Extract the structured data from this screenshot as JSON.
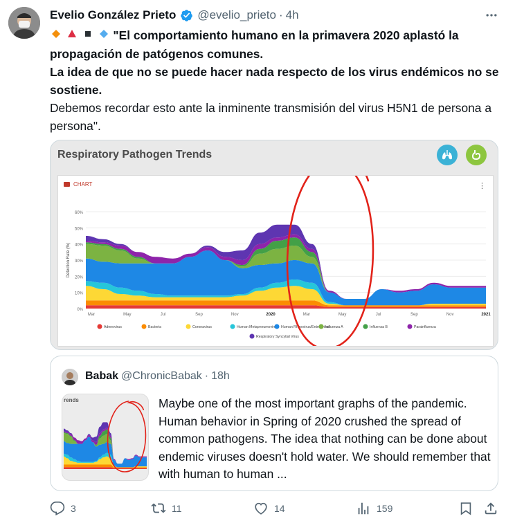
{
  "tweet": {
    "author_name": "Evelio González Prieto",
    "handle": "@evelio_prieto",
    "separator": "·",
    "time": "4h",
    "emoji_prefix": [
      "orange-diamond",
      "red-triangle",
      "black-square",
      "blue-diamond"
    ],
    "text_bold_1": "\"El comportamiento humano en la primavera 2020 aplastó la propagación de patógenos comunes.",
    "text_bold_2": "La idea de que no se puede hacer nada respecto de los virus endémicos no se sostiene.",
    "text_normal": "Debemos recordar esto ante la inminente transmisión del virus H5N1 de persona a persona\"."
  },
  "media": {
    "title": "Respiratory Pathogen Trends",
    "chart_label": "CHART",
    "badge_colors": [
      "#3bb2d6",
      "#8dc63f"
    ]
  },
  "chart_data": {
    "type": "area",
    "stacked": true,
    "ylabel": "Detection Rate (%)",
    "ylim": [
      0,
      60
    ],
    "y_ticks": [
      "0%",
      "10%",
      "20%",
      "30%",
      "40%",
      "50%",
      "60%"
    ],
    "x_ticks": [
      "Mar",
      "May",
      "Jul",
      "Sep",
      "Nov",
      "2020",
      "Mar",
      "May",
      "Jul",
      "Sep",
      "Nov",
      "2021"
    ],
    "x": [
      "Feb-19",
      "Mar-19",
      "Apr-19",
      "May-19",
      "Jun-19",
      "Jul-19",
      "Aug-19",
      "Sep-19",
      "Oct-19",
      "Nov-19",
      "Dec-19",
      "Jan-20",
      "Feb-20",
      "Mar-20",
      "Apr-20",
      "May-20",
      "Jun-20",
      "Jul-20",
      "Aug-20",
      "Sep-20",
      "Oct-20",
      "Nov-20",
      "Dec-20",
      "Jan-21"
    ],
    "series": [
      {
        "name": "Adenovirus",
        "color": "#e53935",
        "values": [
          2,
          2,
          2,
          2,
          2,
          2,
          2,
          2,
          2,
          2,
          2,
          2,
          2,
          2,
          1,
          1,
          1,
          1,
          1,
          1,
          1,
          1,
          1,
          1
        ]
      },
      {
        "name": "Bacteria",
        "color": "#fb8c00",
        "values": [
          3,
          3,
          3,
          3,
          3,
          3,
          3,
          3,
          3,
          3,
          3,
          3,
          3,
          3,
          1,
          1,
          1,
          1,
          1,
          1,
          1,
          1,
          1,
          1
        ]
      },
      {
        "name": "Coronavirus",
        "color": "#fdd835",
        "values": [
          9,
          7,
          4,
          3,
          2,
          2,
          2,
          2,
          2,
          3,
          6,
          8,
          9,
          7,
          1,
          0,
          0,
          0,
          0,
          0,
          1,
          1,
          1,
          1
        ]
      },
      {
        "name": "Human Metapneumovirus",
        "color": "#26c6da",
        "values": [
          3,
          4,
          4,
          3,
          2,
          1,
          1,
          1,
          1,
          1,
          2,
          3,
          4,
          4,
          1,
          0,
          0,
          0,
          0,
          0,
          0,
          0,
          0,
          0
        ]
      },
      {
        "name": "Human Rhinovirus/Enterovirus",
        "color": "#1e88e5",
        "values": [
          14,
          13,
          15,
          17,
          19,
          20,
          24,
          28,
          22,
          16,
          14,
          12,
          12,
          12,
          6,
          4,
          4,
          10,
          8,
          9,
          12,
          10,
          10,
          10
        ]
      },
      {
        "name": "Influenza A",
        "color": "#7cb342",
        "values": [
          9,
          10,
          8,
          3,
          0,
          0,
          0,
          0,
          0,
          1,
          7,
          9,
          9,
          4,
          0,
          0,
          0,
          0,
          0,
          0,
          0,
          0,
          0,
          0
        ]
      },
      {
        "name": "Influenza B",
        "color": "#43a047",
        "values": [
          1,
          1,
          1,
          1,
          0,
          0,
          0,
          0,
          0,
          1,
          3,
          5,
          5,
          3,
          0,
          0,
          0,
          0,
          0,
          0,
          0,
          0,
          0,
          0
        ]
      },
      {
        "name": "Parainfluenza",
        "color": "#8e24aa",
        "values": [
          1,
          1,
          2,
          3,
          4,
          3,
          2,
          2,
          2,
          3,
          3,
          2,
          2,
          2,
          1,
          0,
          0,
          0,
          1,
          1,
          1,
          1,
          1,
          1
        ]
      },
      {
        "name": "Respiratory Syncytial Virus",
        "color": "#5e35b1",
        "values": [
          3,
          2,
          1,
          0,
          0,
          0,
          0,
          1,
          3,
          6,
          7,
          8,
          6,
          3,
          0,
          0,
          0,
          0,
          0,
          0,
          0,
          0,
          0,
          0
        ]
      }
    ],
    "legend_position": "bottom"
  },
  "quote": {
    "author_name": "Babak",
    "handle": "@ChronicBabak",
    "separator": "·",
    "time": "18h",
    "thumb_title": "rends",
    "text": "Maybe one of the most important graphs of the pandemic. Human behavior in Spring of 2020 crushed the spread of common pathogens. The idea that nothing can be done about endemic viruses doesn't hold water. We should remember that with human to human ..."
  },
  "actions": {
    "replies": "3",
    "retweets": "11",
    "likes": "14",
    "views": "159"
  },
  "colors": {
    "accent": "#1d9bf0",
    "secondary_text": "#536471",
    "annotation_red": "#e2231a"
  }
}
